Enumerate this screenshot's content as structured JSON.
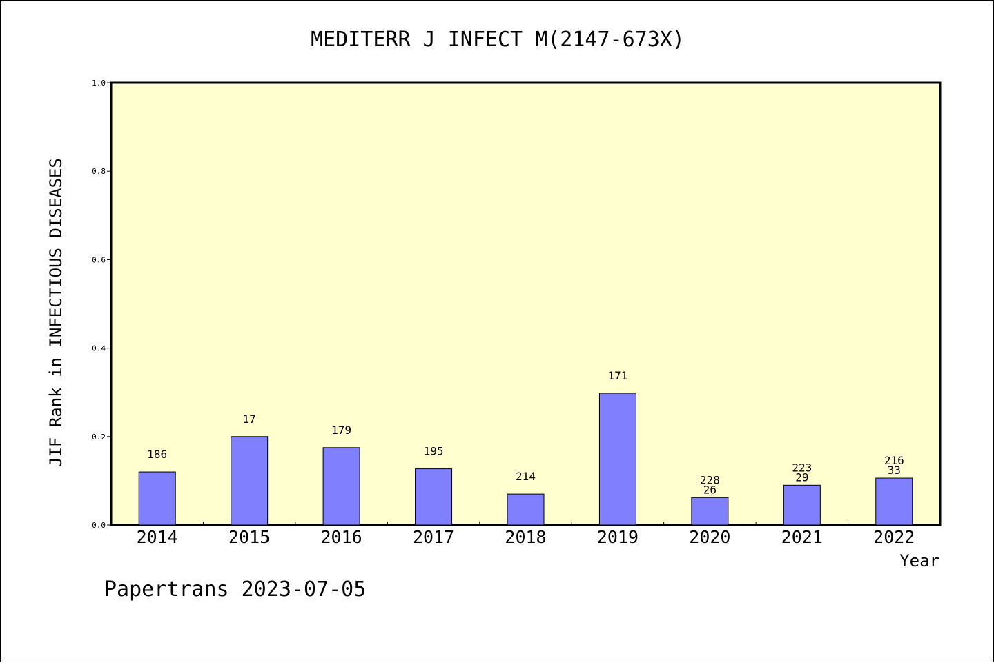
{
  "chart_data": {
    "type": "bar",
    "title": "MEDITERR J INFECT M(2147-673X)",
    "xlabel": "Year",
    "ylabel": "JIF Rank in INFECTIOUS DISEASES",
    "ylim": [
      0,
      1.0
    ],
    "yticks": [
      "0.0",
      "0.2",
      "0.4",
      "0.6",
      "0.8",
      "1.0"
    ],
    "categories": [
      "2014",
      "2015",
      "2016",
      "2017",
      "2018",
      "2019",
      "2020",
      "2021",
      "2022"
    ],
    "values": [
      0.12,
      0.2,
      0.175,
      0.127,
      0.07,
      0.298,
      0.062,
      0.09,
      0.106
    ],
    "bar_labels": [
      [
        "186"
      ],
      [
        "17"
      ],
      [
        "179"
      ],
      [
        "195"
      ],
      [
        "214"
      ],
      [
        "171"
      ],
      [
        "228",
        "26"
      ],
      [
        "223",
        "29"
      ],
      [
        "216",
        "33"
      ]
    ],
    "bar_color": "#8080ff",
    "plot_background": "#ffffd0",
    "grid": false
  },
  "footer": "Papertrans 2023-07-05"
}
